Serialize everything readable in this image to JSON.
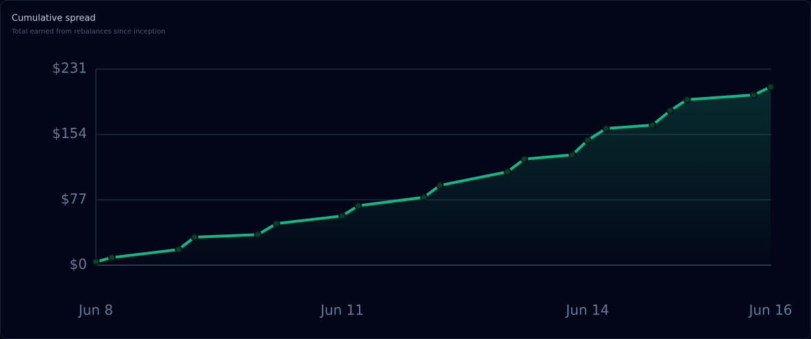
{
  "chart_data": {
    "type": "line",
    "title": "Cumulative spread",
    "subtitle": "Total earned from rebalances since inception",
    "x": [
      8,
      8.19,
      8.98,
      9.17,
      9.92,
      10.14,
      10.92,
      11.11,
      11.89,
      12.08,
      12.88,
      13.08,
      13.65,
      13.83,
      14.05,
      14.6,
      14.81,
      15.01,
      15.8,
      16
    ],
    "series": [
      {
        "name": "Cumulative spread",
        "color": "#12b886",
        "values": [
          4,
          9,
          18.5,
          33,
          36,
          49,
          58,
          70,
          80,
          94,
          110,
          125,
          130,
          147,
          161,
          165,
          182,
          195,
          200.5,
          210
        ]
      }
    ],
    "xlim": [
      8,
      16
    ],
    "xticks": [
      {
        "value": 8,
        "label": "Jun 8"
      },
      {
        "value": 10.92,
        "label": "Jun 11"
      },
      {
        "value": 13.83,
        "label": "Jun 14"
      },
      {
        "value": 16,
        "label": "Jun 16"
      }
    ],
    "ylim": [
      0,
      231
    ],
    "yticks": [
      {
        "value": 0,
        "label": "$0"
      },
      {
        "value": 77,
        "label": "$77"
      },
      {
        "value": 154,
        "label": "$154"
      },
      {
        "value": 231,
        "label": "$231"
      }
    ],
    "grid": true
  }
}
